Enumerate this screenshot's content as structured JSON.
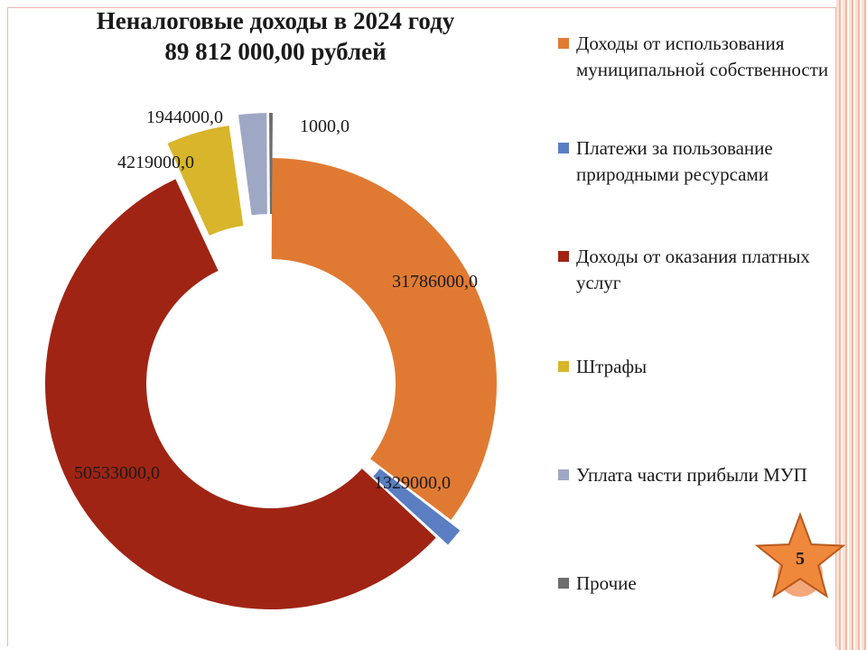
{
  "title_line1": "Неналоговые доходы в 2024 году",
  "title_line2": "89 812 000,00 рублей",
  "chart_data": {
    "type": "pie",
    "variant": "doughnut-exploded",
    "categories": [
      "Доходы от использования муниципальной собственности",
      "Платежи за пользование природными ресурсами",
      "Доходы от оказания платных услуг",
      "Штрафы",
      "Уплата части прибыли МУП",
      "Прочие"
    ],
    "values": [
      31786000,
      1329000,
      50533000,
      4219000,
      1944000,
      1000
    ],
    "data_labels": [
      "31786000,0",
      "1329000,0",
      "50533000,0",
      "4219000,0",
      "1944000,0",
      "1000,0"
    ],
    "colors": [
      "#e07a33",
      "#5b7ec2",
      "#a02414",
      "#d8b52a",
      "#9ea8c4",
      "#6d6d6d"
    ],
    "legend_position": "right"
  },
  "page_number": "5",
  "badge_colors": {
    "star": "#f0883c",
    "circle": "#f4a77a"
  }
}
